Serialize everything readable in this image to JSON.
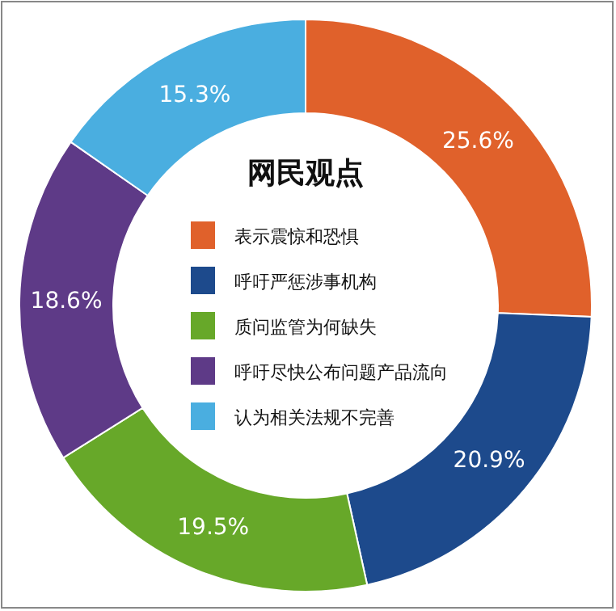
{
  "chart_data": {
    "type": "donut",
    "legend_title": "网民观点",
    "legend": "center",
    "categories": [
      "表示震惊和恐惧",
      "呼吁严惩涉事机构",
      "质问监管为何缺失",
      "呼吁尽快公布问题产品流向",
      "认为相关法规不完善"
    ],
    "values": [
      25.6,
      20.9,
      19.5,
      18.6,
      15.3
    ],
    "value_labels": [
      "25.6%",
      "20.9%",
      "19.5%",
      "18.6%",
      "15.3%"
    ],
    "colors": [
      "#e0612b",
      "#1d4a8c",
      "#67a829",
      "#5e3a87",
      "#4aaee0"
    ]
  }
}
